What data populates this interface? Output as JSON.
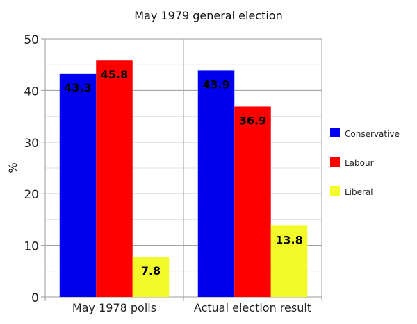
{
  "chart_data": {
    "type": "bar",
    "title": "May 1979 general election",
    "xlabel": "",
    "ylabel": "%",
    "ylim": [
      0,
      50
    ],
    "yticks": [
      0,
      10,
      20,
      30,
      40,
      50
    ],
    "grid": true,
    "legend_position": "right",
    "categories": [
      "May 1978 polls",
      "Actual election result"
    ],
    "series": [
      {
        "name": "Conservative",
        "color": "#0000ee",
        "values": [
          43.3,
          43.9
        ],
        "labels": [
          "43.3",
          "43.9"
        ]
      },
      {
        "name": "Labour",
        "color": "#ff0000",
        "values": [
          45.8,
          36.9
        ],
        "labels": [
          "45.8",
          "36.9"
        ]
      },
      {
        "name": "Liberal",
        "color": "#f2fa2a",
        "values": [
          7.8,
          13.8
        ],
        "labels": [
          "7.8",
          "13.8"
        ]
      }
    ]
  }
}
